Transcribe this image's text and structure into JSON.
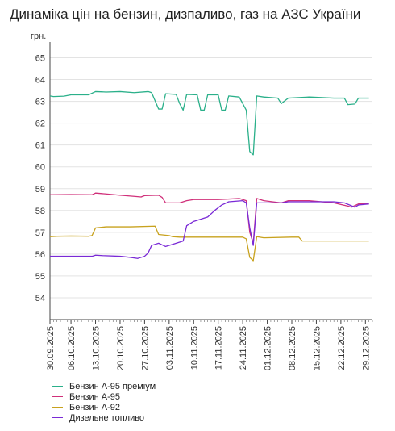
{
  "chart_data": {
    "type": "line",
    "title": "Динаміка цін на бензин, дизпаливо, газ на АЗС України",
    "ylabel": "грн.",
    "ylim": [
      53,
      65.5
    ],
    "yticks": [
      54,
      55,
      56,
      57,
      58,
      59,
      60,
      61,
      62,
      63,
      64,
      65
    ],
    "xlim": [
      "2025-09-30",
      "2025-12-31"
    ],
    "xtick_labels": [
      "30.09.2025",
      "06.10.2025",
      "13.10.2025",
      "20.10.2025",
      "27.10.2025",
      "03.11.2025",
      "10.11.2025",
      "17.11.2025",
      "24.11.2025",
      "01.12.2025",
      "08.12.2025",
      "15.12.2025",
      "22.12.2025",
      "29.12.2025"
    ],
    "legend_position": "bottom-left",
    "series": [
      {
        "name": "Бензин А-95 преміум",
        "color": "#2bb08a",
        "points": [
          [
            "2025-09-30",
            63.25
          ],
          [
            "2025-10-01",
            63.22
          ],
          [
            "2025-10-04",
            63.24
          ],
          [
            "2025-10-06",
            63.3
          ],
          [
            "2025-10-11",
            63.3
          ],
          [
            "2025-10-13",
            63.45
          ],
          [
            "2025-10-16",
            63.43
          ],
          [
            "2025-10-20",
            63.45
          ],
          [
            "2025-10-24",
            63.4
          ],
          [
            "2025-10-28",
            63.45
          ],
          [
            "2025-10-29",
            63.4
          ],
          [
            "2025-10-31",
            62.65
          ],
          [
            "2025-11-01",
            62.65
          ],
          [
            "2025-11-02",
            63.35
          ],
          [
            "2025-11-05",
            63.32
          ],
          [
            "2025-11-06",
            62.9
          ],
          [
            "2025-11-07",
            62.6
          ],
          [
            "2025-11-08",
            63.32
          ],
          [
            "2025-11-11",
            63.3
          ],
          [
            "2025-11-12",
            62.6
          ],
          [
            "2025-11-13",
            62.6
          ],
          [
            "2025-11-14",
            63.3
          ],
          [
            "2025-11-17",
            63.3
          ],
          [
            "2025-11-18",
            62.6
          ],
          [
            "2025-11-19",
            62.6
          ],
          [
            "2025-11-20",
            63.25
          ],
          [
            "2025-11-23",
            63.2
          ],
          [
            "2025-11-25",
            62.6
          ],
          [
            "2025-11-26",
            60.7
          ],
          [
            "2025-11-27",
            60.55
          ],
          [
            "2025-11-28",
            63.25
          ],
          [
            "2025-11-30",
            63.2
          ],
          [
            "2025-12-04",
            63.15
          ],
          [
            "2025-12-05",
            62.9
          ],
          [
            "2025-12-07",
            63.15
          ],
          [
            "2025-12-13",
            63.2
          ],
          [
            "2025-12-20",
            63.15
          ],
          [
            "2025-12-23",
            63.15
          ],
          [
            "2025-12-24",
            62.85
          ],
          [
            "2025-12-26",
            62.88
          ],
          [
            "2025-12-27",
            63.15
          ],
          [
            "2025-12-30",
            63.15
          ]
        ]
      },
      {
        "name": "Бензин А-95",
        "color": "#d0307a",
        "points": [
          [
            "2025-09-30",
            58.72
          ],
          [
            "2025-10-06",
            58.73
          ],
          [
            "2025-10-12",
            58.72
          ],
          [
            "2025-10-13",
            58.8
          ],
          [
            "2025-10-16",
            58.76
          ],
          [
            "2025-10-20",
            58.7
          ],
          [
            "2025-10-24",
            58.65
          ],
          [
            "2025-10-26",
            58.62
          ],
          [
            "2025-10-27",
            58.68
          ],
          [
            "2025-10-31",
            58.7
          ],
          [
            "2025-11-01",
            58.6
          ],
          [
            "2025-11-02",
            58.35
          ],
          [
            "2025-11-06",
            58.35
          ],
          [
            "2025-11-08",
            58.45
          ],
          [
            "2025-11-10",
            58.5
          ],
          [
            "2025-11-17",
            58.5
          ],
          [
            "2025-11-23",
            58.55
          ],
          [
            "2025-11-25",
            58.45
          ],
          [
            "2025-11-26",
            57.0
          ],
          [
            "2025-11-27",
            56.5
          ],
          [
            "2025-11-28",
            58.55
          ],
          [
            "2025-11-30",
            58.45
          ],
          [
            "2025-12-05",
            58.35
          ],
          [
            "2025-12-07",
            58.45
          ],
          [
            "2025-12-13",
            58.45
          ],
          [
            "2025-12-20",
            58.35
          ],
          [
            "2025-12-24",
            58.2
          ],
          [
            "2025-12-25",
            58.15
          ],
          [
            "2025-12-27",
            58.3
          ],
          [
            "2025-12-30",
            58.3
          ]
        ]
      },
      {
        "name": "Бензин А-92",
        "color": "#c8a21e",
        "points": [
          [
            "2025-09-30",
            56.8
          ],
          [
            "2025-10-02",
            56.82
          ],
          [
            "2025-10-06",
            56.83
          ],
          [
            "2025-10-11",
            56.82
          ],
          [
            "2025-10-12",
            56.85
          ],
          [
            "2025-10-13",
            57.2
          ],
          [
            "2025-10-16",
            57.25
          ],
          [
            "2025-10-20",
            57.25
          ],
          [
            "2025-10-23",
            57.25
          ],
          [
            "2025-10-30",
            57.28
          ],
          [
            "2025-10-31",
            56.9
          ],
          [
            "2025-11-03",
            56.85
          ],
          [
            "2025-11-04",
            56.8
          ],
          [
            "2025-11-06",
            56.78
          ],
          [
            "2025-11-13",
            56.78
          ],
          [
            "2025-11-17",
            56.78
          ],
          [
            "2025-11-24",
            56.78
          ],
          [
            "2025-11-25",
            56.7
          ],
          [
            "2025-11-26",
            55.85
          ],
          [
            "2025-11-27",
            55.7
          ],
          [
            "2025-11-28",
            56.8
          ],
          [
            "2025-11-30",
            56.75
          ],
          [
            "2025-12-08",
            56.78
          ],
          [
            "2025-12-10",
            56.78
          ],
          [
            "2025-12-11",
            56.6
          ],
          [
            "2025-12-13",
            56.6
          ],
          [
            "2025-12-20",
            56.6
          ],
          [
            "2025-12-30",
            56.6
          ]
        ]
      },
      {
        "name": "Дизельне топливо",
        "color": "#7a2ad6",
        "points": [
          [
            "2025-09-30",
            55.9
          ],
          [
            "2025-10-06",
            55.9
          ],
          [
            "2025-10-12",
            55.9
          ],
          [
            "2025-10-13",
            55.95
          ],
          [
            "2025-10-15",
            55.93
          ],
          [
            "2025-10-20",
            55.9
          ],
          [
            "2025-10-23",
            55.85
          ],
          [
            "2025-10-25",
            55.8
          ],
          [
            "2025-10-26",
            55.85
          ],
          [
            "2025-10-27",
            55.9
          ],
          [
            "2025-10-28",
            56.05
          ],
          [
            "2025-10-29",
            56.4
          ],
          [
            "2025-10-31",
            56.5
          ],
          [
            "2025-11-02",
            56.35
          ],
          [
            "2025-11-04",
            56.45
          ],
          [
            "2025-11-07",
            56.6
          ],
          [
            "2025-11-08",
            57.3
          ],
          [
            "2025-11-10",
            57.5
          ],
          [
            "2025-11-12",
            57.6
          ],
          [
            "2025-11-14",
            57.7
          ],
          [
            "2025-11-16",
            58.0
          ],
          [
            "2025-11-18",
            58.25
          ],
          [
            "2025-11-20",
            58.4
          ],
          [
            "2025-11-24",
            58.45
          ],
          [
            "2025-11-25",
            58.35
          ],
          [
            "2025-11-26",
            57.2
          ],
          [
            "2025-11-27",
            56.4
          ],
          [
            "2025-11-28",
            58.35
          ],
          [
            "2025-11-30",
            58.35
          ],
          [
            "2025-12-05",
            58.35
          ],
          [
            "2025-12-07",
            58.4
          ],
          [
            "2025-12-13",
            58.4
          ],
          [
            "2025-12-20",
            58.4
          ],
          [
            "2025-12-23",
            58.35
          ],
          [
            "2025-12-26",
            58.15
          ],
          [
            "2025-12-27",
            58.25
          ],
          [
            "2025-12-30",
            58.3
          ]
        ]
      }
    ]
  }
}
